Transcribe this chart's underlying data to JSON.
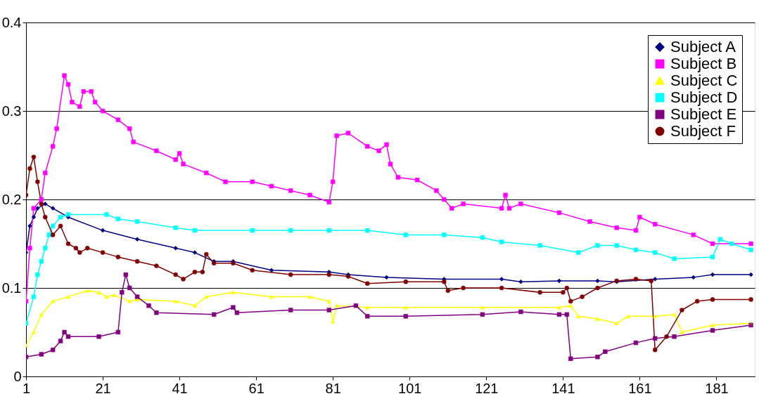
{
  "chart_data": {
    "type": "line",
    "xlim": [
      1,
      191
    ],
    "xticks": [
      1,
      21,
      41,
      61,
      81,
      101,
      121,
      141,
      161,
      181
    ],
    "ylim": [
      0,
      0.4
    ],
    "yticks": [
      0,
      0.1,
      0.2,
      0.3,
      0.4
    ],
    "grid": "y",
    "legend": "top right",
    "series": [
      {
        "name": "Subject A",
        "color": "#000080",
        "marker": "diamond",
        "x": [
          1,
          2,
          3,
          4,
          6,
          8,
          12,
          21,
          30,
          40,
          45,
          50,
          55,
          65,
          80,
          85,
          95,
          110,
          125,
          130,
          140,
          150,
          155,
          165,
          175,
          180,
          190
        ],
        "values": [
          0.14,
          0.17,
          0.18,
          0.19,
          0.195,
          0.19,
          0.18,
          0.165,
          0.155,
          0.145,
          0.14,
          0.13,
          0.13,
          0.12,
          0.118,
          0.115,
          0.112,
          0.11,
          0.11,
          0.107,
          0.108,
          0.108,
          0.107,
          0.11,
          0.112,
          0.115,
          0.115
        ]
      },
      {
        "name": "Subject B",
        "color": "#ff00ff",
        "marker": "square",
        "x": [
          1,
          2,
          3,
          5,
          6,
          8,
          9,
          11,
          12,
          13,
          15,
          16,
          18,
          19,
          21,
          25,
          28,
          29,
          35,
          40,
          41,
          42,
          48,
          53,
          60,
          65,
          70,
          75,
          80,
          81,
          82,
          85,
          90,
          93,
          95,
          96,
          98,
          103,
          108,
          110,
          112,
          115,
          125,
          126,
          127,
          130,
          140,
          148,
          155,
          160,
          161,
          165,
          175,
          180,
          190
        ],
        "values": [
          0.085,
          0.145,
          0.19,
          0.2,
          0.23,
          0.26,
          0.28,
          0.34,
          0.33,
          0.31,
          0.305,
          0.322,
          0.322,
          0.31,
          0.3,
          0.29,
          0.28,
          0.265,
          0.255,
          0.245,
          0.252,
          0.24,
          0.23,
          0.22,
          0.22,
          0.215,
          0.21,
          0.205,
          0.197,
          0.22,
          0.272,
          0.275,
          0.26,
          0.255,
          0.262,
          0.24,
          0.225,
          0.222,
          0.21,
          0.2,
          0.19,
          0.195,
          0.19,
          0.205,
          0.19,
          0.195,
          0.185,
          0.175,
          0.168,
          0.165,
          0.18,
          0.172,
          0.16,
          0.15,
          0.15
        ]
      },
      {
        "name": "Subject C",
        "color": "#ffff00",
        "marker": "triangle",
        "x": [
          1,
          3,
          5,
          8,
          12,
          17,
          20,
          22,
          24,
          28,
          30,
          40,
          45,
          48,
          55,
          65,
          75,
          80,
          81,
          82,
          90,
          100,
          120,
          140,
          143,
          145,
          150,
          155,
          158,
          165,
          170,
          172,
          180,
          190
        ],
        "values": [
          0.035,
          0.05,
          0.07,
          0.085,
          0.09,
          0.097,
          0.095,
          0.09,
          0.092,
          0.085,
          0.087,
          0.085,
          0.08,
          0.09,
          0.095,
          0.09,
          0.09,
          0.085,
          0.062,
          0.08,
          0.078,
          0.078,
          0.078,
          0.078,
          0.08,
          0.068,
          0.065,
          0.06,
          0.068,
          0.068,
          0.07,
          0.05,
          0.058,
          0.06
        ]
      },
      {
        "name": "Subject D",
        "color": "#00ffff",
        "marker": "square",
        "x": [
          1,
          3,
          4,
          5,
          6,
          7,
          8,
          10,
          12,
          22,
          25,
          30,
          40,
          45,
          60,
          70,
          80,
          90,
          100,
          110,
          120,
          125,
          135,
          145,
          150,
          155,
          160,
          165,
          170,
          180,
          182,
          185,
          190
        ],
        "values": [
          0.06,
          0.09,
          0.115,
          0.13,
          0.145,
          0.16,
          0.17,
          0.18,
          0.183,
          0.183,
          0.178,
          0.175,
          0.168,
          0.165,
          0.165,
          0.165,
          0.165,
          0.165,
          0.16,
          0.16,
          0.157,
          0.152,
          0.148,
          0.14,
          0.148,
          0.148,
          0.143,
          0.14,
          0.133,
          0.135,
          0.155,
          0.15,
          0.143
        ]
      },
      {
        "name": "Subject E",
        "color": "#800080",
        "marker": "square",
        "x": [
          1,
          5,
          8,
          10,
          11,
          12,
          20,
          25,
          26,
          27,
          28,
          30,
          33,
          35,
          50,
          55,
          56,
          70,
          80,
          87,
          90,
          100,
          120,
          130,
          140,
          142,
          143,
          150,
          152,
          160,
          165,
          170,
          180,
          190
        ],
        "values": [
          0.022,
          0.025,
          0.03,
          0.04,
          0.05,
          0.045,
          0.045,
          0.05,
          0.095,
          0.115,
          0.1,
          0.09,
          0.08,
          0.072,
          0.07,
          0.078,
          0.072,
          0.075,
          0.075,
          0.08,
          0.068,
          0.068,
          0.07,
          0.073,
          0.07,
          0.07,
          0.02,
          0.022,
          0.028,
          0.038,
          0.043,
          0.045,
          0.052,
          0.058
        ]
      },
      {
        "name": "Subject F",
        "color": "#800000",
        "marker": "circle",
        "x": [
          1,
          2,
          3,
          4,
          5,
          6,
          8,
          10,
          12,
          14,
          15,
          17,
          21,
          25,
          30,
          35,
          40,
          42,
          45,
          47,
          48,
          50,
          55,
          60,
          70,
          80,
          85,
          90,
          100,
          110,
          111,
          115,
          125,
          135,
          141,
          142,
          143,
          146,
          150,
          155,
          160,
          164,
          165,
          168,
          172,
          176,
          180,
          190
        ],
        "values": [
          0.205,
          0.235,
          0.248,
          0.22,
          0.195,
          0.18,
          0.16,
          0.17,
          0.15,
          0.145,
          0.14,
          0.145,
          0.14,
          0.135,
          0.13,
          0.125,
          0.115,
          0.11,
          0.118,
          0.118,
          0.138,
          0.128,
          0.128,
          0.12,
          0.115,
          0.115,
          0.113,
          0.105,
          0.107,
          0.107,
          0.097,
          0.1,
          0.1,
          0.095,
          0.095,
          0.1,
          0.085,
          0.09,
          0.1,
          0.108,
          0.11,
          0.108,
          0.03,
          0.045,
          0.075,
          0.085,
          0.087,
          0.087
        ]
      }
    ]
  }
}
